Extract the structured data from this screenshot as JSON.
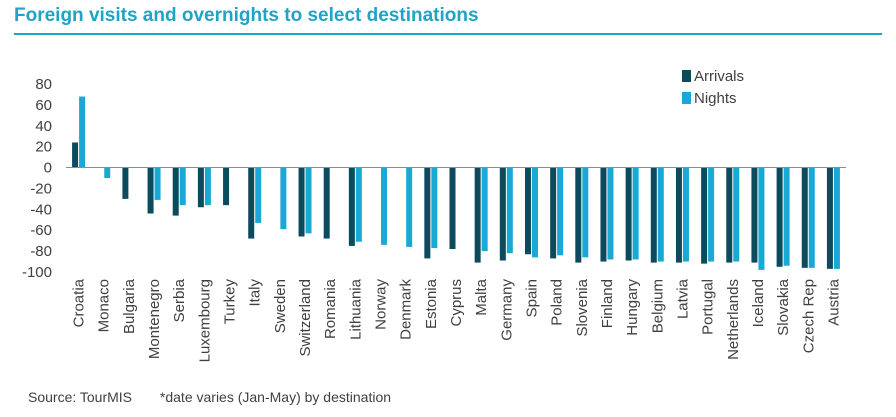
{
  "title": "Foreign visits and overnights to select destinations",
  "footer": {
    "source": "Source: TourMIS",
    "note": "*date varies (Jan-May) by destination"
  },
  "colors": {
    "arrivals": "#0c4a5e",
    "nights": "#1aa9d4",
    "title": "#1fa3c6"
  },
  "chart_data": {
    "type": "bar",
    "categories": [
      "Croatia",
      "Monaco",
      "Bulgaria",
      "Montenegro",
      "Serbia",
      "Luxembourg",
      "Turkey",
      "Italy",
      "Sweden",
      "Switzerland",
      "Romania",
      "Lithuania",
      "Norway",
      "Denmark",
      "Estonia",
      "Cyprus",
      "Malta",
      "Germany",
      "Spain",
      "Poland",
      "Slovenia",
      "Finland",
      "Hungary",
      "Belgium",
      "Latvia",
      "Portugal",
      "Netherlands",
      "Iceland",
      "Slovakia",
      "Czech Rep",
      "Austria"
    ],
    "series": [
      {
        "name": "Arrivals",
        "values": [
          24,
          null,
          -30,
          -44,
          -46,
          -38,
          -36,
          -68,
          null,
          -66,
          -68,
          -75,
          null,
          null,
          -87,
          -78,
          -91,
          -89,
          -83,
          -87,
          -91,
          -90,
          -89,
          -91,
          -91,
          -92,
          -91,
          -91,
          -95,
          -96,
          -97
        ]
      },
      {
        "name": "Nights",
        "values": [
          68,
          -10,
          null,
          -31,
          -36,
          -36,
          null,
          -53,
          -59,
          -63,
          null,
          -71,
          -74,
          -76,
          -77,
          null,
          -80,
          -82,
          -86,
          -84,
          -86,
          -88,
          -88,
          -90,
          -90,
          -90,
          -90,
          -98,
          -94,
          -96,
          -97
        ]
      }
    ],
    "ylim": [
      -100,
      80
    ],
    "yticks": [
      80,
      60,
      40,
      20,
      0,
      -20,
      -40,
      -60,
      -80,
      -100
    ],
    "legend_position": "top-right",
    "grid": false
  }
}
